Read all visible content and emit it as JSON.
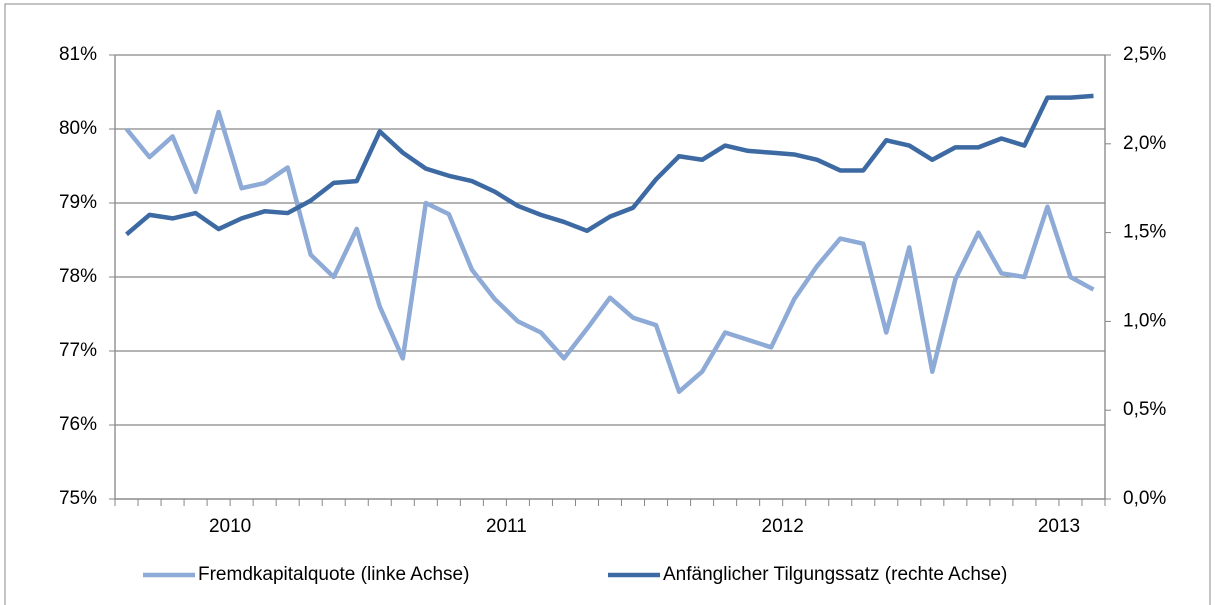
{
  "chart_data": {
    "type": "line",
    "categories": [
      null,
      null,
      null,
      null,
      "2010",
      null,
      null,
      null,
      null,
      null,
      null,
      null,
      null,
      null,
      null,
      null,
      "2011",
      null,
      null,
      null,
      null,
      null,
      null,
      null,
      null,
      null,
      null,
      null,
      "2012",
      null,
      null,
      null,
      null,
      null,
      null,
      null,
      null,
      null,
      null,
      null,
      "2013",
      null,
      null
    ],
    "series": [
      {
        "name": "Fremdkapitalquote (linke Achse)",
        "color": "#8eaad6",
        "values": [
          80.0,
          79.62,
          79.9,
          79.15,
          80.23,
          79.2,
          79.27,
          79.48,
          78.3,
          78.0,
          78.65,
          77.6,
          76.9,
          79.0,
          78.85,
          78.1,
          77.7,
          77.4,
          77.25,
          76.9,
          77.3,
          77.72,
          77.45,
          77.35,
          76.45,
          76.72,
          77.25,
          77.15,
          77.05,
          77.7,
          78.15,
          78.52,
          78.45,
          77.25,
          78.4,
          76.72,
          77.97,
          78.6,
          78.05,
          78.0,
          78.95,
          78.0,
          77.83
        ]
      },
      {
        "name": "Anfänglicher Tilgungssatz (rechte Achse)",
        "color": "#3d6aa3",
        "axis": "y2",
        "values": [
          1.49,
          1.6,
          1.58,
          1.61,
          1.52,
          1.58,
          1.62,
          1.61,
          1.68,
          1.78,
          1.79,
          2.07,
          1.95,
          1.86,
          1.82,
          1.79,
          1.73,
          1.65,
          1.6,
          1.56,
          1.51,
          1.59,
          1.64,
          1.8,
          1.93,
          1.91,
          1.99,
          1.96,
          1.95,
          1.94,
          1.91,
          1.85,
          1.85,
          2.02,
          1.99,
          1.91,
          1.98,
          1.98,
          2.03,
          1.99,
          2.26,
          2.26,
          2.27
        ]
      }
    ],
    "ylim": [
      75,
      81
    ],
    "yticks": [
      {
        "value": 75,
        "label": "75%"
      },
      {
        "value": 76,
        "label": "76%"
      },
      {
        "value": 77,
        "label": "77%"
      },
      {
        "value": 78,
        "label": "78%"
      },
      {
        "value": 79,
        "label": "79%"
      },
      {
        "value": 80,
        "label": "80%"
      },
      {
        "value": 81,
        "label": "81%"
      }
    ],
    "y2lim": [
      0,
      2.5
    ],
    "y2ticks": [
      {
        "value": 0,
        "label": "0,0%"
      },
      {
        "value": 0.5,
        "label": "0,5%"
      },
      {
        "value": 1,
        "label": "1,0%"
      },
      {
        "value": 1.5,
        "label": "1,5%"
      },
      {
        "value": 2,
        "label": "2,0%"
      },
      {
        "value": 2.5,
        "label": "2,5%"
      }
    ],
    "grid": true,
    "legend": "bottom"
  }
}
